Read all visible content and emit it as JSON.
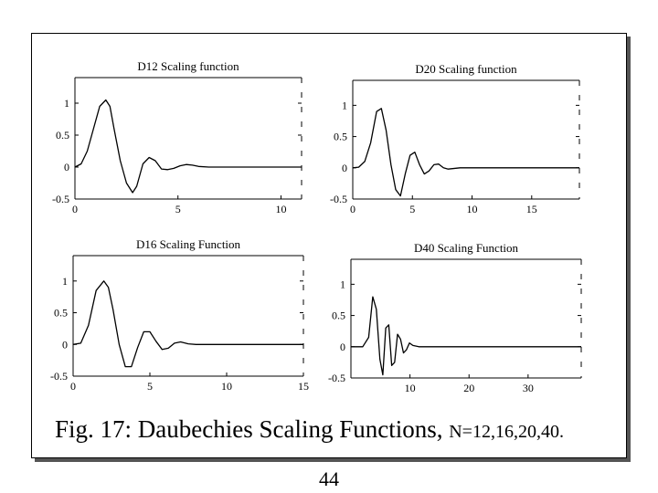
{
  "caption": {
    "main": "Fig. 17: Daubechies Scaling Functions, ",
    "small": "N=12,16,20,40."
  },
  "page_number": "44",
  "chart_data": [
    {
      "type": "line",
      "title": "D12 Scaling function",
      "xlim": [
        0,
        11
      ],
      "ylim": [
        -0.5,
        1.4
      ],
      "xticks": [
        0,
        5,
        10
      ],
      "yticks": [
        -0.5,
        0,
        0.5,
        1
      ],
      "yticklabels": [
        "-0.5",
        "0",
        "0.5",
        "1"
      ],
      "series": [
        {
          "x": [
            0,
            0.3,
            0.6,
            0.9,
            1.2,
            1.5,
            1.7,
            1.9,
            2.2,
            2.5,
            2.8,
            3.0,
            3.3,
            3.6,
            3.9,
            4.2,
            4.5,
            4.8,
            5.1,
            5.4,
            5.7,
            6.0,
            6.5,
            7.5,
            9,
            11
          ],
          "y": [
            0,
            0.05,
            0.25,
            0.6,
            0.95,
            1.05,
            0.95,
            0.6,
            0.1,
            -0.25,
            -0.4,
            -0.3,
            0.05,
            0.15,
            0.1,
            -0.03,
            -0.04,
            -0.02,
            0.02,
            0.04,
            0.03,
            0.01,
            0,
            0,
            0,
            0
          ]
        }
      ]
    },
    {
      "type": "line",
      "title": "D20 Scaling function",
      "xlim": [
        0,
        19
      ],
      "ylim": [
        -0.5,
        1.4
      ],
      "xticks": [
        0,
        5,
        10,
        15
      ],
      "yticks": [
        -0.5,
        0,
        0.5,
        1
      ],
      "yticklabels": [
        "-0.5",
        "0",
        "0.5",
        "1"
      ],
      "series": [
        {
          "x": [
            0,
            0.5,
            1.0,
            1.5,
            2.0,
            2.4,
            2.8,
            3.2,
            3.6,
            4.0,
            4.4,
            4.8,
            5.2,
            5.6,
            6.0,
            6.4,
            6.8,
            7.2,
            7.6,
            8.0,
            9,
            11,
            13,
            19
          ],
          "y": [
            0,
            0.01,
            0.1,
            0.4,
            0.9,
            0.95,
            0.6,
            0.05,
            -0.35,
            -0.45,
            -0.1,
            0.2,
            0.25,
            0.05,
            -0.1,
            -0.05,
            0.05,
            0.06,
            0.0,
            -0.02,
            0,
            0,
            0,
            0
          ]
        }
      ]
    },
    {
      "type": "line",
      "title": "D16 Scaling Function",
      "xlim": [
        0,
        15
      ],
      "ylim": [
        -0.5,
        1.4
      ],
      "xticks": [
        0,
        5,
        10,
        15
      ],
      "yticks": [
        -0.5,
        0,
        0.5,
        1
      ],
      "yticklabels": [
        "-0.5",
        "0",
        "0.5",
        "1"
      ],
      "series": [
        {
          "x": [
            0,
            0.5,
            1.0,
            1.5,
            2.0,
            2.3,
            2.6,
            3.0,
            3.4,
            3.8,
            4.2,
            4.6,
            5.0,
            5.4,
            5.8,
            6.2,
            6.6,
            7.0,
            7.5,
            8,
            10,
            15
          ],
          "y": [
            0,
            0.02,
            0.3,
            0.85,
            1.0,
            0.9,
            0.55,
            0.0,
            -0.35,
            -0.35,
            -0.05,
            0.2,
            0.2,
            0.05,
            -0.08,
            -0.06,
            0.02,
            0.04,
            0.01,
            0,
            0,
            0
          ]
        }
      ]
    },
    {
      "type": "line",
      "title": "D40 Scaling Function",
      "xlim": [
        0,
        39
      ],
      "ylim": [
        -0.5,
        1.4
      ],
      "xticks": [
        10,
        20,
        30
      ],
      "yticks": [
        -0.5,
        0,
        0.5,
        1
      ],
      "yticklabels": [
        "-0.5",
        "0",
        "0.5",
        "1"
      ],
      "series": [
        {
          "x": [
            0,
            2,
            3,
            3.7,
            4.3,
            4.9,
            5.4,
            5.9,
            6.4,
            6.9,
            7.4,
            7.9,
            8.4,
            8.9,
            9.4,
            9.9,
            10.5,
            11.5,
            13,
            16,
            20,
            30,
            39
          ],
          "y": [
            0,
            0.0,
            0.15,
            0.8,
            0.6,
            -0.2,
            -0.45,
            0.3,
            0.35,
            -0.3,
            -0.25,
            0.2,
            0.12,
            -0.1,
            -0.05,
            0.06,
            0.02,
            0,
            0,
            0,
            0,
            0,
            0
          ]
        }
      ]
    }
  ]
}
